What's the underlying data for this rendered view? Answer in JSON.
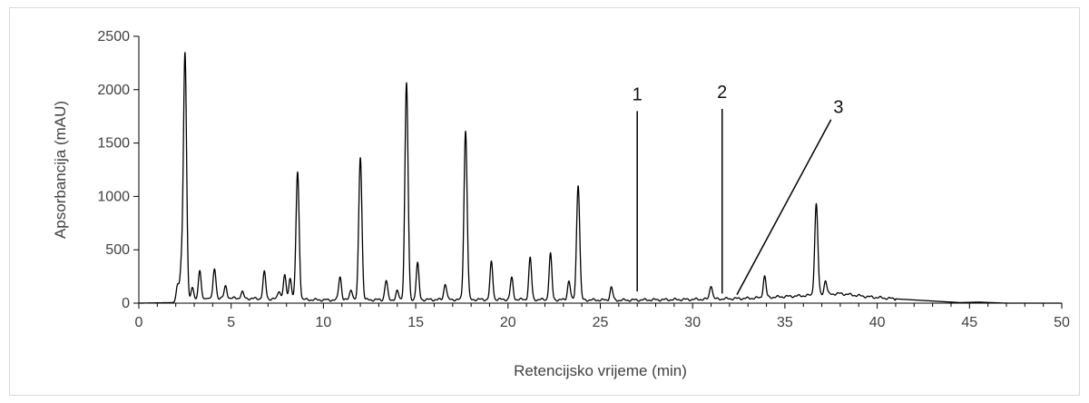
{
  "chart_data": {
    "type": "line",
    "title": "",
    "xlabel": "Retencijsko vrijeme (min)",
    "ylabel": "Apsorbancija (mAU)",
    "xlim": [
      0,
      50
    ],
    "ylim": [
      0,
      2500
    ],
    "x_ticks": [
      "0",
      "5",
      "10",
      "15",
      "20",
      "25",
      "30",
      "35",
      "40",
      "45",
      "50"
    ],
    "y_ticks": [
      "0",
      "500",
      "1000",
      "1500",
      "2000",
      "2500"
    ],
    "grid": false,
    "legend": "none",
    "line_color": "#000000",
    "baseline": [
      [
        0,
        0
      ],
      [
        1.8,
        5
      ],
      [
        4,
        50
      ],
      [
        10,
        30
      ],
      [
        20,
        35
      ],
      [
        26,
        28
      ],
      [
        30,
        35
      ],
      [
        33,
        45
      ],
      [
        36,
        70
      ],
      [
        38,
        90
      ],
      [
        39.5,
        60
      ],
      [
        41,
        40
      ],
      [
        43,
        20
      ],
      [
        44.5,
        5
      ],
      [
        45.5,
        10
      ],
      [
        46.2,
        5
      ],
      [
        47,
        0
      ],
      [
        50,
        0
      ]
    ],
    "peaks": [
      {
        "x": 2.1,
        "y": 160
      },
      {
        "x": 2.3,
        "y": 300
      },
      {
        "x": 2.5,
        "y": 2320
      },
      {
        "x": 2.9,
        "y": 120
      },
      {
        "x": 3.3,
        "y": 270
      },
      {
        "x": 4.1,
        "y": 270
      },
      {
        "x": 4.7,
        "y": 110
      },
      {
        "x": 5.6,
        "y": 60
      },
      {
        "x": 6.8,
        "y": 250
      },
      {
        "x": 7.6,
        "y": 80
      },
      {
        "x": 7.9,
        "y": 220
      },
      {
        "x": 8.2,
        "y": 200
      },
      {
        "x": 8.6,
        "y": 1190
      },
      {
        "x": 10.9,
        "y": 220
      },
      {
        "x": 11.5,
        "y": 100
      },
      {
        "x": 12.0,
        "y": 1340
      },
      {
        "x": 13.4,
        "y": 180
      },
      {
        "x": 14.0,
        "y": 80
      },
      {
        "x": 14.5,
        "y": 2030
      },
      {
        "x": 15.1,
        "y": 340
      },
      {
        "x": 16.6,
        "y": 150
      },
      {
        "x": 17.7,
        "y": 1580
      },
      {
        "x": 19.1,
        "y": 350
      },
      {
        "x": 20.2,
        "y": 200
      },
      {
        "x": 21.2,
        "y": 390
      },
      {
        "x": 22.3,
        "y": 430
      },
      {
        "x": 23.3,
        "y": 180
      },
      {
        "x": 23.8,
        "y": 1080
      },
      {
        "x": 25.6,
        "y": 120
      },
      {
        "x": 31.0,
        "y": 130
      },
      {
        "x": 33.9,
        "y": 200
      },
      {
        "x": 36.7,
        "y": 850
      },
      {
        "x": 37.2,
        "y": 130
      }
    ],
    "annotations": [
      {
        "label": "1",
        "from": [
          27.0,
          110
        ],
        "to": [
          27.0,
          1800
        ],
        "text_at": [
          27.0,
          1900
        ]
      },
      {
        "label": "2",
        "from": [
          31.6,
          90
        ],
        "to": [
          31.6,
          1820
        ],
        "text_at": [
          31.6,
          1920
        ]
      },
      {
        "label": "3",
        "from": [
          32.4,
          80
        ],
        "to": [
          37.5,
          1720
        ],
        "text_at": [
          37.9,
          1780
        ]
      }
    ]
  }
}
